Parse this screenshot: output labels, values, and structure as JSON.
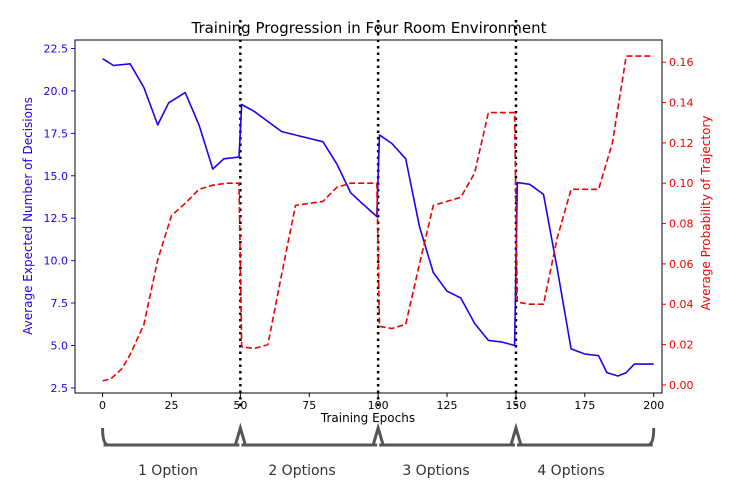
{
  "chart_data": {
    "type": "line",
    "title": "Training Progression in Four Room Environment",
    "xlabel": "Training Epochs",
    "ylabel_left": "Average Expected Number of Decisions",
    "ylabel_right": "Average Probability of Trajectory",
    "xlim": [
      -10,
      203
    ],
    "ylim_left": [
      2.2,
      23.0
    ],
    "ylim_right": [
      -0.004,
      0.171
    ],
    "x_ticks": [
      0,
      25,
      50,
      75,
      100,
      125,
      150,
      175,
      200
    ],
    "y_left_ticks": [
      2.5,
      5.0,
      7.5,
      10.0,
      12.5,
      15.0,
      17.5,
      20.0,
      22.5
    ],
    "y_left_tick_labels": [
      "2.5",
      "5.0",
      "7.5",
      "10.0",
      "12.5",
      "15.0",
      "17.5",
      "20.0",
      "22.5"
    ],
    "y_right_ticks": [
      0.0,
      0.02,
      0.04,
      0.06,
      0.08,
      0.1,
      0.12,
      0.14,
      0.16
    ],
    "y_right_tick_labels": [
      "0.00",
      "0.02",
      "0.04",
      "0.06",
      "0.08",
      "0.10",
      "0.12",
      "0.14",
      "0.16"
    ],
    "vlines": [
      50,
      100,
      150
    ],
    "series": [
      {
        "axis": "left",
        "color": "#2200ee",
        "style": "solid",
        "x": [
          0,
          4,
          10,
          15,
          20,
          24,
          30,
          35,
          40,
          44,
          49.5,
          50.5,
          55,
          60,
          65,
          70,
          75,
          80,
          85,
          90,
          94,
          99.5,
          100.5,
          105,
          110,
          115,
          120,
          125,
          130,
          135,
          140,
          145,
          149.5,
          150.5,
          155,
          160,
          165,
          170,
          175,
          180,
          183,
          187,
          190,
          193,
          200
        ],
        "y": [
          21.9,
          21.5,
          21.6,
          20.2,
          18.0,
          19.3,
          19.9,
          18.0,
          15.4,
          16.0,
          16.1,
          19.2,
          18.8,
          18.2,
          17.6,
          17.4,
          17.2,
          17.0,
          15.7,
          14.0,
          13.4,
          12.6,
          17.4,
          16.9,
          16.0,
          12.0,
          9.3,
          8.2,
          7.8,
          6.3,
          5.3,
          5.2,
          5.0,
          14.6,
          14.5,
          13.9,
          9.5,
          4.8,
          4.5,
          4.4,
          3.4,
          3.2,
          3.4,
          3.9,
          3.9
        ]
      },
      {
        "axis": "right",
        "color": "#ee0000",
        "style": "dashed",
        "x": [
          0,
          3,
          7,
          10,
          15,
          20,
          25,
          30,
          35,
          40,
          45,
          49.5,
          50.5,
          55,
          60,
          65,
          70,
          75,
          80,
          85,
          90,
          95,
          99.5,
          100.5,
          105,
          110,
          115,
          120,
          125,
          130,
          135,
          140,
          145,
          149.5,
          150.5,
          155,
          160,
          165,
          170,
          175,
          180,
          185,
          190,
          195,
          200
        ],
        "y": [
          0.002,
          0.003,
          0.008,
          0.015,
          0.03,
          0.062,
          0.084,
          0.09,
          0.097,
          0.099,
          0.1,
          0.1,
          0.019,
          0.018,
          0.02,
          0.055,
          0.089,
          0.09,
          0.091,
          0.098,
          0.1,
          0.1,
          0.1,
          0.029,
          0.028,
          0.03,
          0.06,
          0.089,
          0.091,
          0.093,
          0.105,
          0.135,
          0.135,
          0.135,
          0.041,
          0.04,
          0.04,
          0.073,
          0.097,
          0.097,
          0.097,
          0.12,
          0.163,
          0.163,
          0.163
        ]
      }
    ]
  },
  "phases": [
    "1 Option",
    "2 Options",
    "3 Options",
    "4 Options"
  ]
}
